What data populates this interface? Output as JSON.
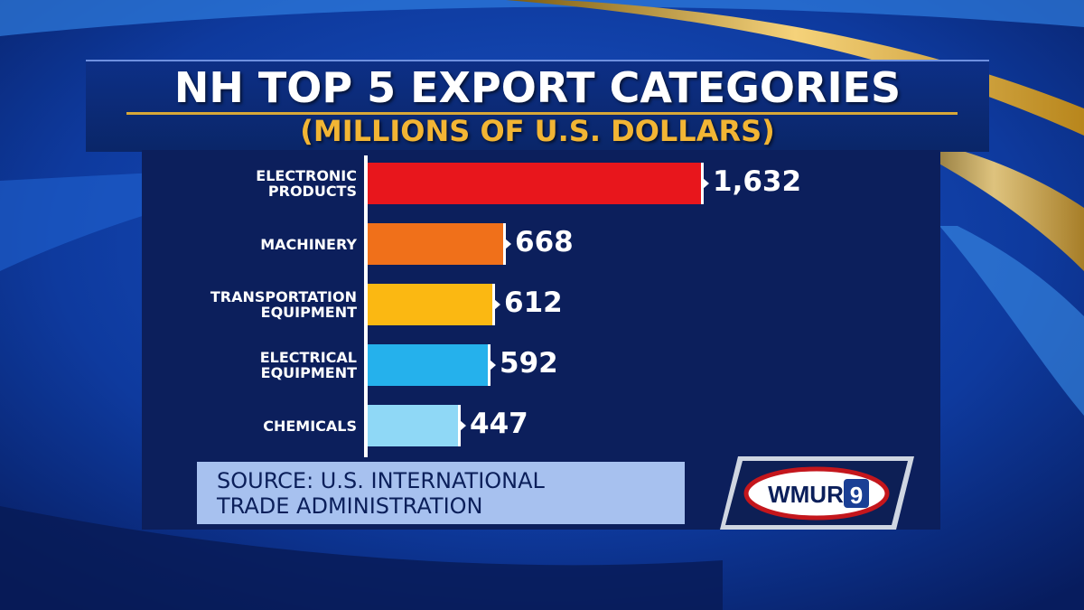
{
  "chart_data": {
    "type": "bar",
    "orientation": "horizontal",
    "title": "NH TOP 5 EXPORT CATEGORIES",
    "subtitle": "(MILLIONS OF U.S. DOLLARS)",
    "categories": [
      [
        "ELECTRONIC",
        "PRODUCTS"
      ],
      [
        "MACHINERY"
      ],
      [
        "TRANSPORTATION",
        "EQUIPMENT"
      ],
      [
        "ELECTRICAL",
        "EQUIPMENT"
      ],
      [
        "CHEMICALS"
      ]
    ],
    "values": [
      1632,
      668,
      612,
      592,
      447
    ],
    "value_labels": [
      "1,632",
      "668",
      "612",
      "592",
      "447"
    ],
    "colors": [
      "#e8161c",
      "#f0701a",
      "#fbb812",
      "#25b1ec",
      "#8fd8f6"
    ],
    "xlim": [
      0,
      1632
    ]
  },
  "source": {
    "line1": "SOURCE: U.S. INTERNATIONAL",
    "line2": "TRADE ADMINISTRATION"
  },
  "logo": {
    "text": "WMUR",
    "number": "9"
  }
}
